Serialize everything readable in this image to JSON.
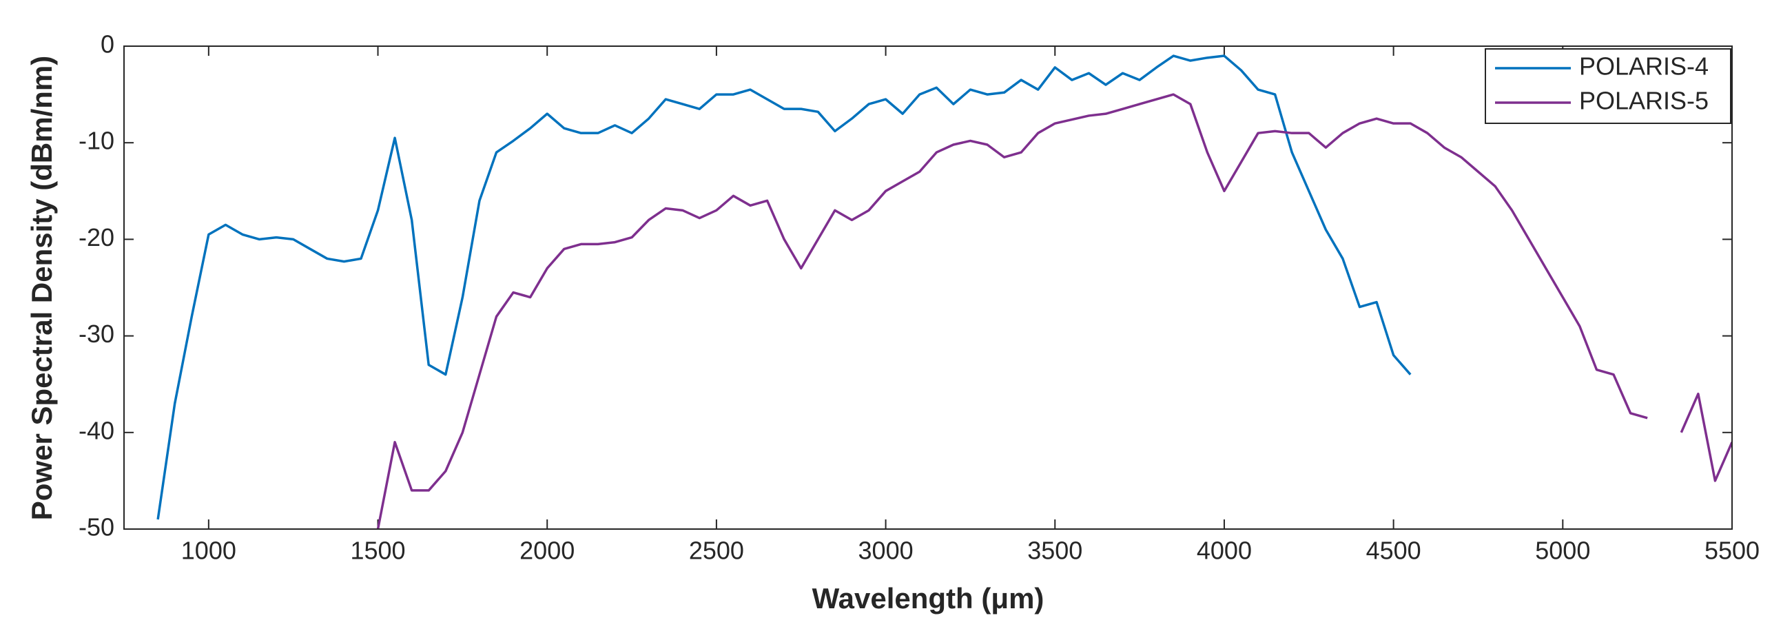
{
  "chart_data": {
    "type": "line",
    "xlabel": "Wavelength (μm)",
    "ylabel": "Power Spectral Density (dBm/nm)",
    "xlim": [
      750,
      5500
    ],
    "xticks": [
      1000,
      1500,
      2000,
      2500,
      3000,
      3500,
      4000,
      4500,
      5000,
      5500
    ],
    "ylim": [
      -50,
      0
    ],
    "yticks": [
      0,
      -10,
      -20,
      -30,
      -40,
      -50
    ],
    "legend": "upper right",
    "x": [
      850,
      900,
      950,
      1000,
      1050,
      1100,
      1150,
      1200,
      1250,
      1300,
      1350,
      1400,
      1450,
      1500,
      1550,
      1600,
      1650,
      1700,
      1750,
      1800,
      1850,
      1900,
      1950,
      2000,
      2050,
      2100,
      2150,
      2200,
      2250,
      2300,
      2350,
      2400,
      2450,
      2500,
      2550,
      2600,
      2650,
      2700,
      2750,
      2800,
      2850,
      2900,
      2950,
      3000,
      3050,
      3100,
      3150,
      3200,
      3250,
      3300,
      3350,
      3400,
      3450,
      3500,
      3550,
      3600,
      3650,
      3700,
      3750,
      3800,
      3850,
      3900,
      3950,
      4000,
      4050,
      4100,
      4150,
      4200,
      4250,
      4300,
      4350,
      4400,
      4450,
      4500,
      4550,
      4600,
      4650,
      4700,
      4750,
      4800,
      4850,
      4900,
      4950,
      5000,
      5050,
      5100,
      5150,
      5200,
      5250,
      5300,
      5350,
      5400,
      5450,
      5500
    ],
    "series": [
      {
        "name": "POLARIS-4",
        "color": "#0072bd",
        "values": [
          -49,
          -37,
          -28,
          -19.5,
          -18.5,
          -19.5,
          -20,
          -19.8,
          -20,
          -21,
          -22,
          -22.3,
          -22,
          -17,
          -9.5,
          -18,
          -33,
          -34,
          -26,
          -16,
          -11,
          -9.8,
          -8.5,
          -7,
          -8.5,
          -9,
          -9,
          -8.2,
          -9,
          -7.5,
          -5.5,
          -6,
          -6.5,
          -5,
          -5,
          -4.5,
          -5.5,
          -6.5,
          -6.5,
          -6.8,
          -8.8,
          -7.5,
          -6,
          -5.5,
          -7,
          -5,
          -4.3,
          -6,
          -4.5,
          -5,
          -4.8,
          -3.5,
          -4.5,
          -2.2,
          -3.5,
          -2.8,
          -4,
          -2.8,
          -3.5,
          -2.2,
          -1,
          -1.5,
          -1.2,
          -1,
          -2.5,
          -4.5,
          -5,
          -11,
          -15,
          -19,
          -22,
          -27,
          -26.5,
          -32,
          -34,
          null,
          null,
          null,
          null,
          null,
          null,
          null,
          null,
          null,
          null,
          null,
          null,
          null,
          null,
          null,
          null,
          null,
          null,
          null
        ]
      },
      {
        "name": "POLARIS-5",
        "color": "#7e2f8e",
        "values": [
          null,
          null,
          null,
          null,
          null,
          null,
          null,
          null,
          null,
          null,
          null,
          null,
          null,
          -50,
          -41,
          -46,
          -46,
          -44,
          -40,
          -34,
          -28,
          -25.5,
          -26,
          -23,
          -21,
          -20.5,
          -20.5,
          -20.3,
          -19.8,
          -18,
          -16.8,
          -17,
          -17.8,
          -17,
          -15.5,
          -16.5,
          -16,
          -20,
          -23,
          -20,
          -17,
          -18,
          -17,
          -15,
          -14,
          -13,
          -11,
          -10.2,
          -9.8,
          -10.2,
          -11.5,
          -11,
          -9,
          -8,
          -7.6,
          -7.2,
          -7,
          -6.5,
          -6,
          -5.5,
          -5,
          -6,
          -11,
          -15,
          -12,
          -9,
          -8.8,
          -9,
          -9,
          -10.5,
          -9,
          -8,
          -7.5,
          -8,
          -8,
          -9,
          -10.5,
          -11.5,
          -13,
          -14.5,
          -17,
          -20,
          -23,
          -26,
          -29,
          -33.5,
          -34,
          -38,
          -38.5,
          null,
          -40,
          -36,
          -45,
          -41
        ]
      }
    ]
  }
}
